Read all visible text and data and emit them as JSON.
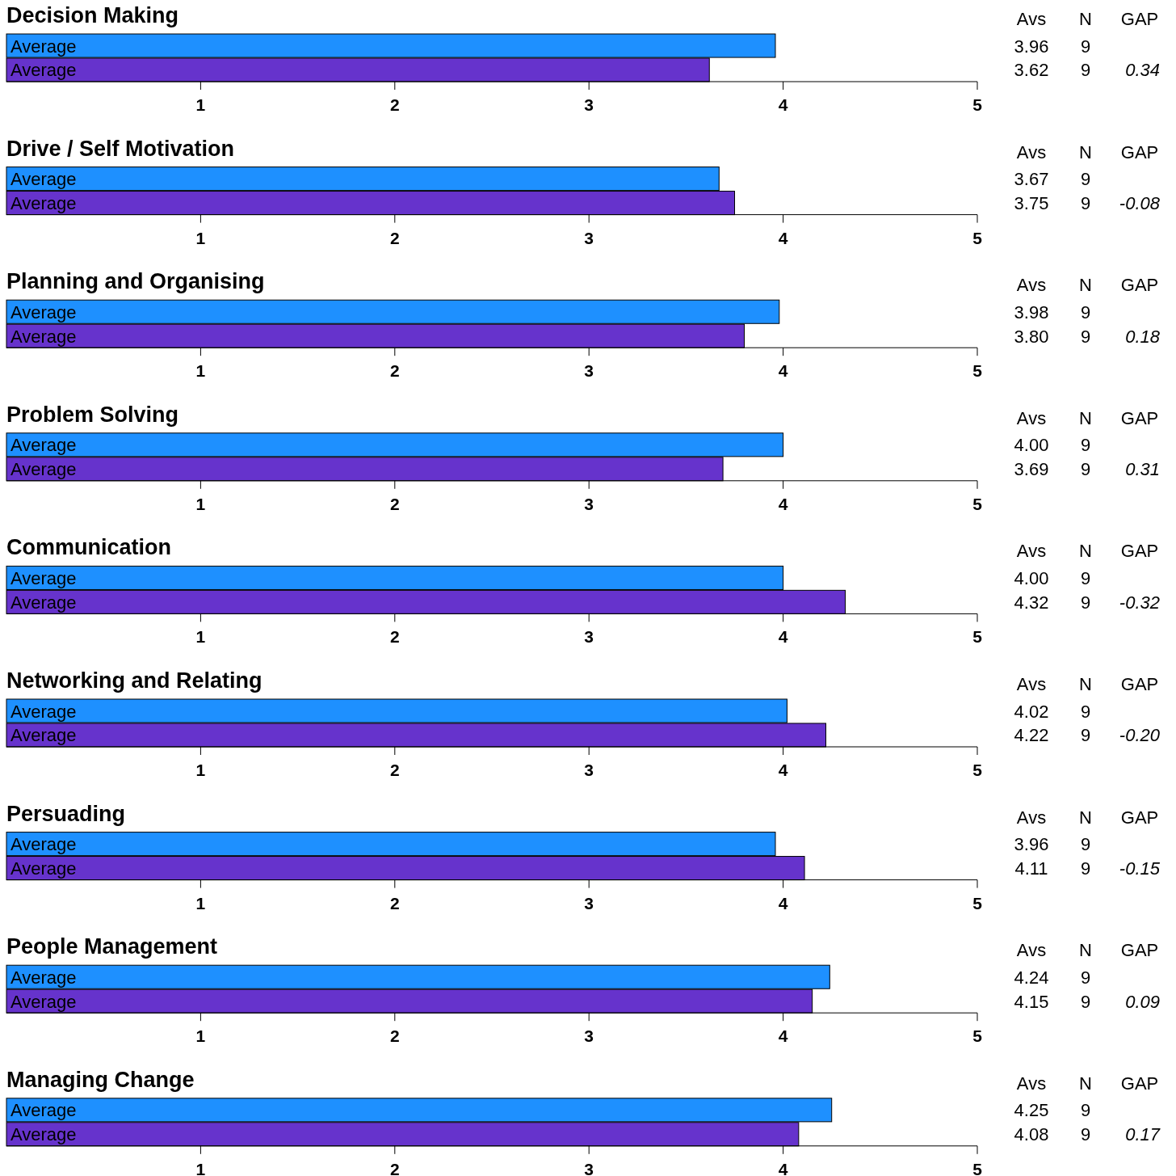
{
  "chart_data": [
    {
      "type": "bar",
      "orientation": "horizontal",
      "title": "Decision Making",
      "categories": [
        "Average",
        "Average"
      ],
      "values": [
        3.96,
        3.62
      ],
      "colors": [
        "#1e90ff",
        "#6633cc"
      ],
      "xlim": [
        0,
        5
      ],
      "xticks": [
        1,
        2,
        3,
        4,
        5
      ],
      "value_labels": [
        "3.96",
        "3.62"
      ],
      "annotations": [
        "Avs",
        "N",
        "GAP",
        "9",
        "9",
        "0.34"
      ]
    },
    {
      "type": "bar",
      "orientation": "horizontal",
      "title": "Drive / Self Motivation",
      "categories": [
        "Average",
        "Average"
      ],
      "values": [
        3.67,
        3.75
      ],
      "colors": [
        "#1e90ff",
        "#6633cc"
      ],
      "xlim": [
        0,
        5
      ],
      "xticks": [
        1,
        2,
        3,
        4,
        5
      ],
      "value_labels": [
        "3.67",
        "3.75"
      ],
      "annotations": [
        "Avs",
        "N",
        "GAP",
        "9",
        "9",
        "-0.08"
      ]
    },
    {
      "type": "bar",
      "orientation": "horizontal",
      "title": "Planning and Organising",
      "categories": [
        "Average",
        "Average"
      ],
      "values": [
        3.98,
        3.8
      ],
      "colors": [
        "#1e90ff",
        "#6633cc"
      ],
      "xlim": [
        0,
        5
      ],
      "xticks": [
        1,
        2,
        3,
        4,
        5
      ],
      "value_labels": [
        "3.98",
        "3.80"
      ],
      "annotations": [
        "Avs",
        "N",
        "GAP",
        "9",
        "9",
        "0.18"
      ]
    },
    {
      "type": "bar",
      "orientation": "horizontal",
      "title": "Problem Solving",
      "categories": [
        "Average",
        "Average"
      ],
      "values": [
        4.0,
        3.69
      ],
      "colors": [
        "#1e90ff",
        "#6633cc"
      ],
      "xlim": [
        0,
        5
      ],
      "xticks": [
        1,
        2,
        3,
        4,
        5
      ],
      "value_labels": [
        "4.00",
        "3.69"
      ],
      "annotations": [
        "Avs",
        "N",
        "GAP",
        "9",
        "9",
        "0.31"
      ]
    },
    {
      "type": "bar",
      "orientation": "horizontal",
      "title": "Communication",
      "categories": [
        "Average",
        "Average"
      ],
      "values": [
        4.0,
        4.32
      ],
      "colors": [
        "#1e90ff",
        "#6633cc"
      ],
      "xlim": [
        0,
        5
      ],
      "xticks": [
        1,
        2,
        3,
        4,
        5
      ],
      "value_labels": [
        "4.00",
        "4.32"
      ],
      "annotations": [
        "Avs",
        "N",
        "GAP",
        "9",
        "9",
        "-0.32"
      ]
    },
    {
      "type": "bar",
      "orientation": "horizontal",
      "title": "Networking and Relating",
      "categories": [
        "Average",
        "Average"
      ],
      "values": [
        4.02,
        4.22
      ],
      "colors": [
        "#1e90ff",
        "#6633cc"
      ],
      "xlim": [
        0,
        5
      ],
      "xticks": [
        1,
        2,
        3,
        4,
        5
      ],
      "value_labels": [
        "4.02",
        "4.22"
      ],
      "annotations": [
        "Avs",
        "N",
        "GAP",
        "9",
        "9",
        "-0.20"
      ]
    },
    {
      "type": "bar",
      "orientation": "horizontal",
      "title": "Persuading",
      "categories": [
        "Average",
        "Average"
      ],
      "values": [
        3.96,
        4.11
      ],
      "colors": [
        "#1e90ff",
        "#6633cc"
      ],
      "xlim": [
        0,
        5
      ],
      "xticks": [
        1,
        2,
        3,
        4,
        5
      ],
      "value_labels": [
        "3.96",
        "4.11"
      ],
      "annotations": [
        "Avs",
        "N",
        "GAP",
        "9",
        "9",
        "-0.15"
      ]
    },
    {
      "type": "bar",
      "orientation": "horizontal",
      "title": "People Management",
      "categories": [
        "Average",
        "Average"
      ],
      "values": [
        4.24,
        4.15
      ],
      "colors": [
        "#1e90ff",
        "#6633cc"
      ],
      "xlim": [
        0,
        5
      ],
      "xticks": [
        1,
        2,
        3,
        4,
        5
      ],
      "value_labels": [
        "4.24",
        "4.15"
      ],
      "annotations": [
        "Avs",
        "N",
        "GAP",
        "9",
        "9",
        "0.09"
      ]
    },
    {
      "type": "bar",
      "orientation": "horizontal",
      "title": "Managing Change",
      "categories": [
        "Average",
        "Average"
      ],
      "values": [
        4.25,
        4.08
      ],
      "colors": [
        "#1e90ff",
        "#6633cc"
      ],
      "xlim": [
        0,
        5
      ],
      "xticks": [
        1,
        2,
        3,
        4,
        5
      ],
      "value_labels": [
        "4.25",
        "4.08"
      ],
      "annotations": [
        "Avs",
        "N",
        "GAP",
        "9",
        "9",
        "0.17"
      ]
    }
  ]
}
